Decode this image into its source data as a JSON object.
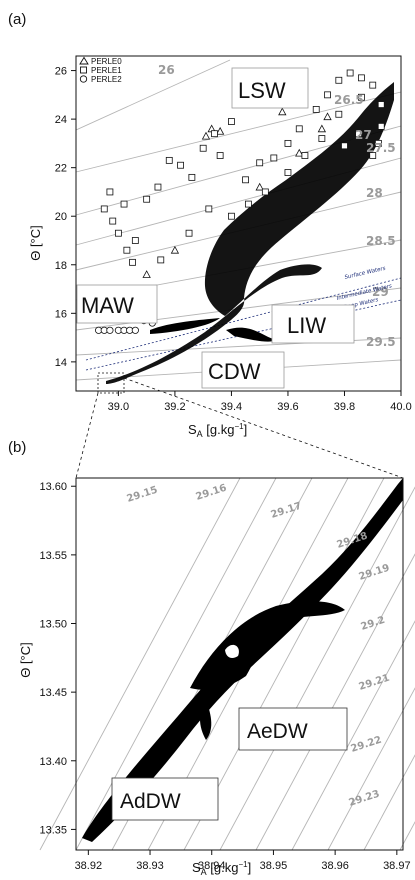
{
  "panel_a": {
    "label": "(a)",
    "y_axis_label": "Θ [°C]",
    "x_axis_label": "S",
    "x_axis_label_sub": "A",
    "x_axis_label_unit": " [g.kg",
    "x_axis_label_sup": "−1",
    "x_axis_label_end": "]",
    "legend": [
      "PERLE0",
      "PERLE1",
      "PERLE2"
    ],
    "water_masses": [
      "LSW",
      "MAW",
      "LIW",
      "CDW"
    ],
    "isopycnals": [
      "26",
      "26.5",
      "27",
      "27.5",
      "28",
      "28.5",
      "29",
      "29.5"
    ],
    "separators": [
      "Surface Waters",
      "Intermediate Waters",
      "Deep Waters"
    ]
  },
  "panel_b": {
    "label": "(b)",
    "y_axis_label": "Θ [°C]",
    "x_axis_label": "S",
    "x_axis_label_sub": "A",
    "x_axis_label_unit": " [g.kg",
    "x_axis_label_sup": "−1",
    "x_axis_label_end": "]",
    "water_masses": [
      "AeDW",
      "AdDW"
    ],
    "isopycnals": [
      "29.15",
      "29.16",
      "29.17",
      "29.18",
      "29.19",
      "29.2",
      "29.21",
      "29.22",
      "29.23"
    ]
  },
  "chart_data": [
    {
      "type": "scatter",
      "panel": "(a)",
      "xlabel": "SA [g.kg−1]",
      "ylabel": "Θ [°C]",
      "xlim": [
        38.85,
        40.0
      ],
      "ylim": [
        12.8,
        26.6
      ],
      "x_ticks": [
        "39.0",
        "39.2",
        "39.4",
        "39.6",
        "39.8",
        "40.0"
      ],
      "y_ticks": [
        "14",
        "16",
        "18",
        "20",
        "22",
        "24",
        "26"
      ],
      "grid": false,
      "legend_position": "top-left",
      "series": [
        {
          "name": "PERLE0",
          "marker": "triangle",
          "values": [
            [
              39.33,
              23.6
            ],
            [
              39.36,
              23.5
            ],
            [
              39.31,
              23.3
            ],
            [
              39.56,
              24.6
            ],
            [
              39.58,
              24.3
            ],
            [
              39.72,
              23.6
            ],
            [
              39.74,
              24.1
            ],
            [
              39.5,
              21.2
            ],
            [
              39.64,
              22.6
            ],
            [
              39.2,
              18.6
            ],
            [
              39.1,
              17.6
            ],
            [
              39.0,
              16.8
            ]
          ]
        },
        {
          "name": "PERLE1",
          "marker": "square",
          "values": [
            [
              38.95,
              20.3
            ],
            [
              38.98,
              19.8
            ],
            [
              39.0,
              19.3
            ],
            [
              39.03,
              18.6
            ],
            [
              39.05,
              18.1
            ],
            [
              38.97,
              21.0
            ],
            [
              39.02,
              20.5
            ],
            [
              39.06,
              19.0
            ],
            [
              39.1,
              20.7
            ],
            [
              39.14,
              21.2
            ],
            [
              39.18,
              22.3
            ],
            [
              39.22,
              22.1
            ],
            [
              39.26,
              21.6
            ],
            [
              39.3,
              22.8
            ],
            [
              39.34,
              23.4
            ],
            [
              39.36,
              22.5
            ],
            [
              39.4,
              23.9
            ],
            [
              39.45,
              21.5
            ],
            [
              39.5,
              22.2
            ],
            [
              39.55,
              22.4
            ],
            [
              39.6,
              23.0
            ],
            [
              39.64,
              23.6
            ],
            [
              39.7,
              24.4
            ],
            [
              39.74,
              25.0
            ],
            [
              39.78,
              25.6
            ],
            [
              39.82,
              25.9
            ],
            [
              39.86,
              25.7
            ],
            [
              39.9,
              25.4
            ],
            [
              39.93,
              24.6
            ],
            [
              39.93,
              23.7
            ],
            [
              39.92,
              23.0
            ],
            [
              39.9,
              22.5
            ],
            [
              39.85,
              23.4
            ],
            [
              39.8,
              22.9
            ],
            [
              39.1,
              16.2
            ],
            [
              39.02,
              16.4
            ],
            [
              38.98,
              16.6
            ],
            [
              39.04,
              17.0
            ],
            [
              39.15,
              18.2
            ],
            [
              39.25,
              19.3
            ],
            [
              39.32,
              20.3
            ],
            [
              39.4,
              20.0
            ],
            [
              39.46,
              20.5
            ],
            [
              39.52,
              21.0
            ],
            [
              39.6,
              21.8
            ],
            [
              39.66,
              22.5
            ],
            [
              39.72,
              23.2
            ],
            [
              39.78,
              24.2
            ],
            [
              39.86,
              24.9
            ]
          ]
        },
        {
          "name": "PERLE2",
          "marker": "circle",
          "values": [
            [
              38.93,
              15.3
            ],
            [
              38.95,
              15.3
            ],
            [
              38.97,
              15.3
            ],
            [
              39.0,
              15.3
            ],
            [
              39.02,
              15.3
            ],
            [
              39.04,
              15.3
            ],
            [
              39.06,
              15.3
            ],
            [
              39.09,
              15.7
            ],
            [
              39.12,
              15.6
            ]
          ]
        }
      ],
      "annotations": [
        "LSW",
        "MAW",
        "LIW",
        "CDW"
      ],
      "contour_labels": [
        "26",
        "26.5",
        "27",
        "27.5",
        "28",
        "28.5",
        "29",
        "29.5"
      ],
      "separator_labels": [
        "Surface Waters",
        "Intermediate Waters",
        "Deep Waters"
      ]
    },
    {
      "type": "scatter",
      "panel": "(b)",
      "xlabel": "SA [g.kg−1]",
      "ylabel": "Θ [°C]",
      "xlim": [
        38.918,
        38.971
      ],
      "ylim": [
        13.335,
        13.606
      ],
      "x_ticks": [
        "38.92",
        "38.93",
        "38.94",
        "38.95",
        "38.96",
        "38.97"
      ],
      "y_ticks": [
        "13.35",
        "13.40",
        "13.45",
        "13.50",
        "13.55",
        "13.60"
      ],
      "grid": false,
      "series": [
        {
          "name": "",
          "marker": "dense",
          "values": [
            [
              38.92,
              13.344
            ],
            [
              38.922,
              13.352
            ],
            [
              38.925,
              13.362
            ],
            [
              38.928,
              13.372
            ],
            [
              38.931,
              13.384
            ],
            [
              38.934,
              13.396
            ],
            [
              38.937,
              13.408
            ],
            [
              38.94,
              13.42
            ],
            [
              38.943,
              13.432
            ],
            [
              38.946,
              13.446
            ],
            [
              38.949,
              13.458
            ],
            [
              38.952,
              13.472
            ],
            [
              38.955,
              13.486
            ],
            [
              38.958,
              13.498
            ],
            [
              38.96,
              13.512
            ],
            [
              38.962,
              13.526
            ],
            [
              38.964,
              13.542
            ],
            [
              38.966,
              13.556
            ],
            [
              38.968,
              13.572
            ],
            [
              38.97,
              13.59
            ],
            [
              38.971,
              13.604
            ],
            [
              38.944,
              13.452
            ],
            [
              38.948,
              13.47
            ],
            [
              38.952,
              13.492
            ],
            [
              38.956,
              13.504
            ],
            [
              38.961,
              13.503
            ],
            [
              38.939,
              13.404
            ],
            [
              38.95,
              13.44
            ],
            [
              38.962,
              13.54
            ]
          ]
        }
      ],
      "annotations": [
        "AeDW",
        "AdDW"
      ],
      "contour_labels": [
        "29.15",
        "29.16",
        "29.17",
        "29.18",
        "29.19",
        "29.2",
        "29.21",
        "29.22",
        "29.23"
      ]
    }
  ]
}
